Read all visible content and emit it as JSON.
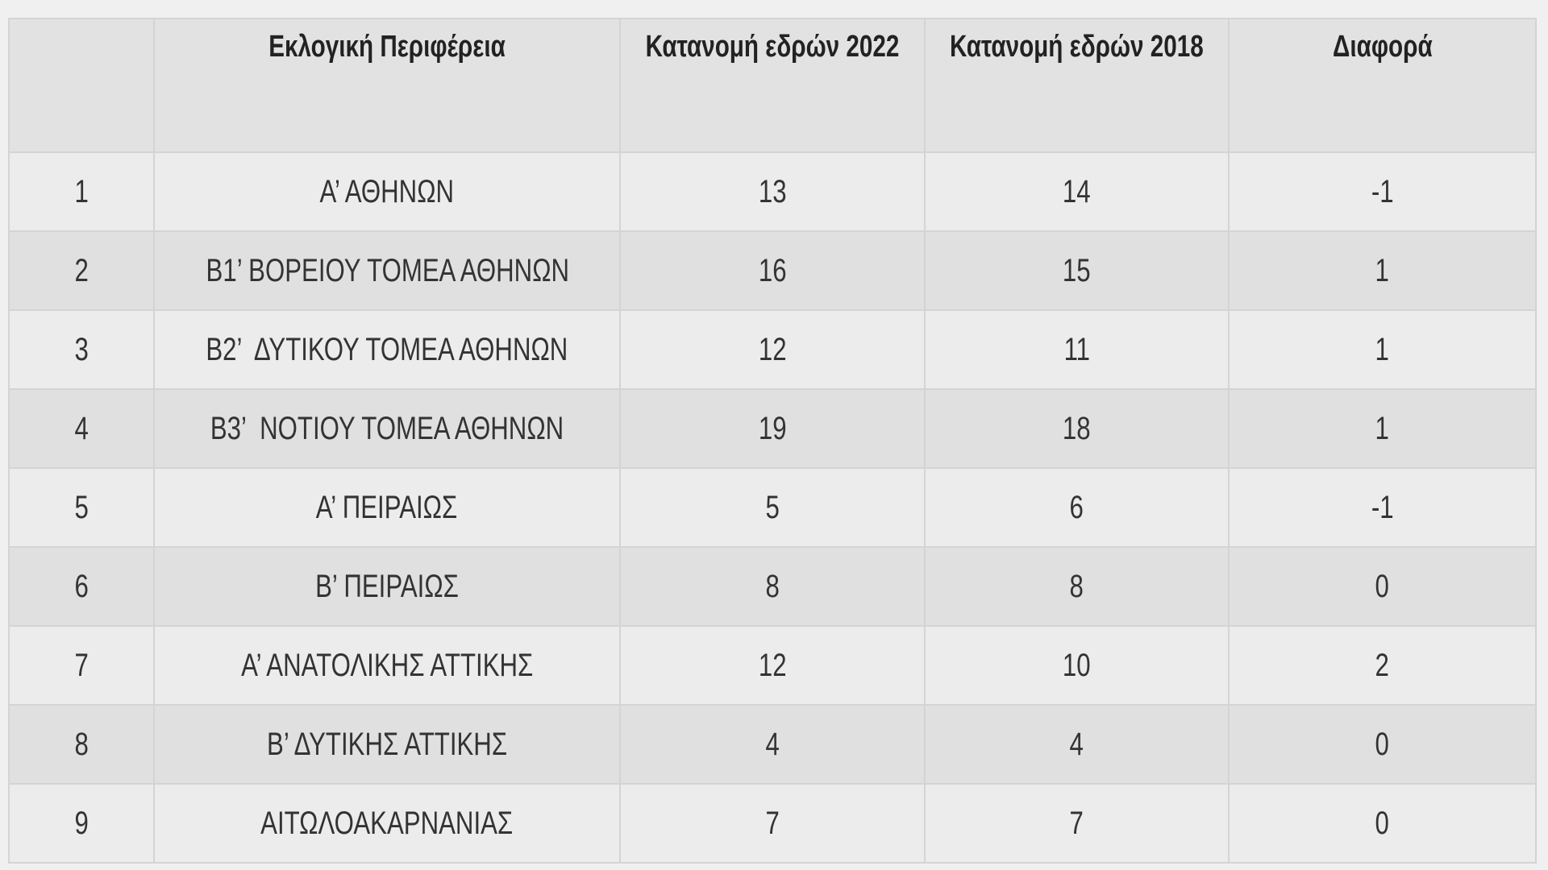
{
  "table": {
    "headers": [
      "",
      "Εκλογική Περιφέρεια",
      "Κατανομή εδρών 2022",
      "Κατανομή εδρών 2018",
      "Διαφορά"
    ],
    "rows": [
      [
        "1",
        "Α’ ΑΘΗΝΩΝ",
        "13",
        "14",
        "-1"
      ],
      [
        "2",
        "Β1’ ΒΟΡΕΙΟΥ ΤΟΜΕΑ ΑΘΗΝΩΝ",
        "16",
        "15",
        "1"
      ],
      [
        "3",
        "Β2’  ΔΥΤΙΚΟΥ ΤΟΜΕΑ ΑΘΗΝΩΝ",
        "12",
        "11",
        "1"
      ],
      [
        "4",
        "Β3’  ΝΟΤΙΟΥ ΤΟΜΕΑ ΑΘΗΝΩΝ",
        "19",
        "18",
        "1"
      ],
      [
        "5",
        "Α’ ΠΕΙΡΑΙΩΣ",
        "5",
        "6",
        "-1"
      ],
      [
        "6",
        "Β’ ΠΕΙΡΑΙΩΣ",
        "8",
        "8",
        "0"
      ],
      [
        "7",
        "Α’ ΑΝΑΤΟΛΙΚΗΣ ΑΤΤΙΚΗΣ",
        "12",
        "10",
        "2"
      ],
      [
        "8",
        "Β’ ΔΥΤΙΚΗΣ ΑΤΤΙΚΗΣ",
        "4",
        "4",
        "0"
      ],
      [
        "9",
        "ΑΙΤΩΛΟΑΚΑΡΝΑΝΙΑΣ",
        "7",
        "7",
        "0"
      ]
    ]
  }
}
